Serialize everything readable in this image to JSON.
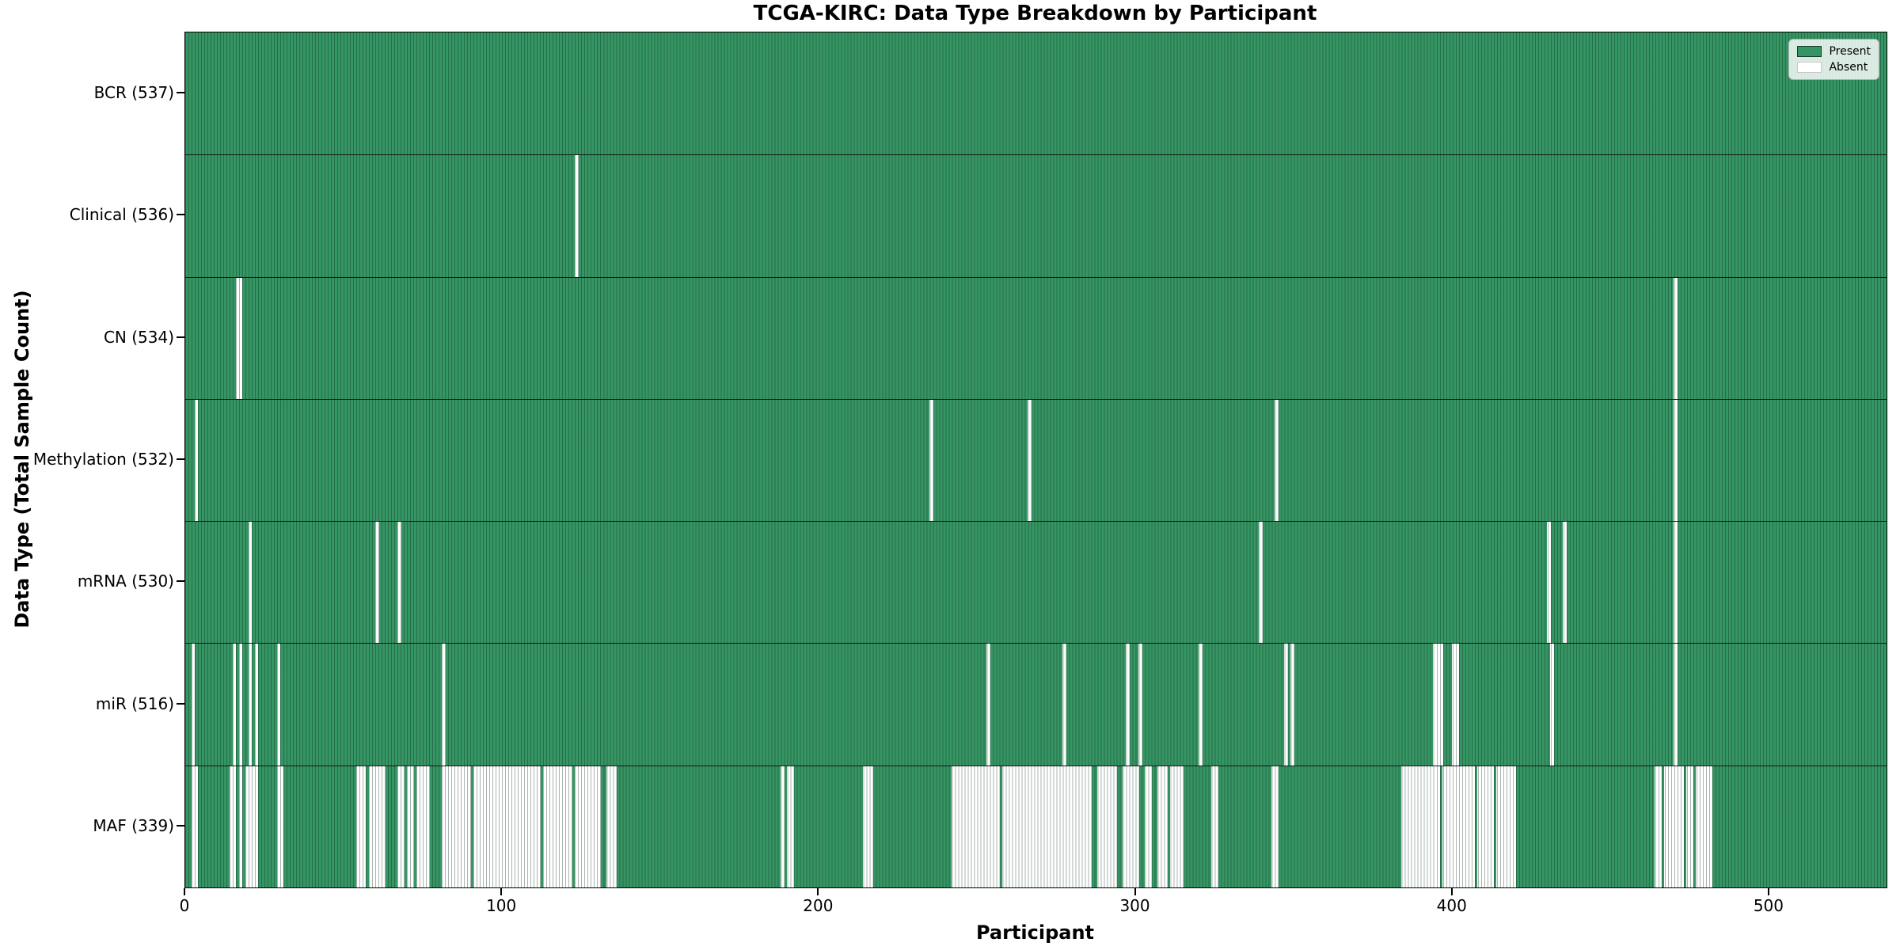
{
  "colors": {
    "present": "#369564",
    "absent": "#ffffff",
    "bar_edge": "rgba(5,35,20,0.34)",
    "row_divider": "#161616"
  },
  "chart_data": {
    "type": "heatmap",
    "title": "TCGA-KIRC: Data Type Breakdown by Participant",
    "xlabel": "Participant",
    "ylabel": "Data Type (Total Sample Count)",
    "legend_position": "upper right",
    "n_participants": 537,
    "xlim": [
      0,
      537
    ],
    "x_ticks": [
      0,
      100,
      200,
      300,
      400,
      500
    ],
    "legend": [
      {
        "label": "Present",
        "color": "#369564"
      },
      {
        "label": "Absent",
        "color": "#ffffff"
      }
    ],
    "rows": [
      {
        "name": "BCR",
        "label": "BCR (537)",
        "present_count": 537,
        "absent": []
      },
      {
        "name": "Clinical",
        "label": "Clinical (536)",
        "present_count": 536,
        "absent": [
          123
        ]
      },
      {
        "name": "CN",
        "label": "CN (534)",
        "present_count": 534,
        "absent": [
          16,
          17,
          470
        ]
      },
      {
        "name": "Methylation",
        "label": "Methylation (532)",
        "present_count": 532,
        "absent": [
          3,
          235,
          266,
          344,
          470
        ]
      },
      {
        "name": "mRNA",
        "label": "mRNA (530)",
        "present_count": 530,
        "absent": [
          20,
          60,
          67,
          339,
          430,
          435,
          470
        ]
      },
      {
        "name": "miR",
        "label": "miR (516)",
        "present_count": 516,
        "absent": [
          2,
          15,
          17,
          20,
          22,
          29,
          81,
          253,
          277,
          297,
          301,
          320,
          347,
          349,
          394,
          395,
          396,
          400,
          401,
          431,
          470
        ]
      },
      {
        "name": "MAF",
        "label": "MAF (339)",
        "present_count": 339,
        "absent": [
          [
            2,
            3
          ],
          [
            14,
            15
          ],
          17,
          [
            19,
            22
          ],
          [
            29,
            30
          ],
          [
            54,
            56
          ],
          [
            58,
            62
          ],
          [
            67,
            68
          ],
          [
            70,
            71
          ],
          [
            73,
            76
          ],
          [
            81,
            89
          ],
          [
            91,
            111
          ],
          [
            113,
            121
          ],
          [
            123,
            130
          ],
          [
            133,
            135
          ],
          188,
          [
            190,
            191
          ],
          [
            214,
            216
          ],
          [
            242,
            256
          ],
          [
            258,
            285
          ],
          [
            288,
            293
          ],
          [
            296,
            300
          ],
          [
            303,
            304
          ],
          [
            307,
            309
          ],
          [
            311,
            314
          ],
          [
            324,
            325
          ],
          [
            343,
            344
          ],
          [
            384,
            395
          ],
          [
            397,
            406
          ],
          [
            408,
            412
          ],
          [
            414,
            419
          ],
          [
            464,
            465
          ],
          [
            467,
            472
          ],
          [
            474,
            475
          ],
          [
            477,
            481
          ]
        ]
      }
    ]
  }
}
